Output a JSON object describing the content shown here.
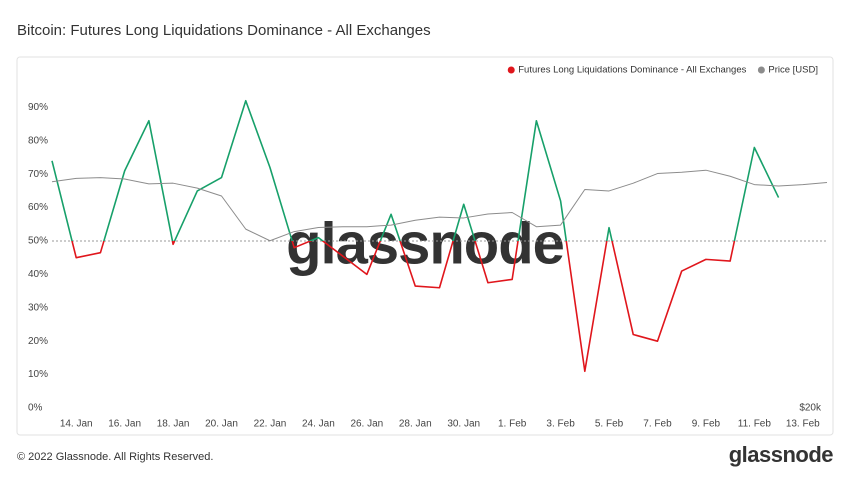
{
  "chart_data": {
    "type": "line",
    "title": "Bitcoin: Futures Long Liquidations Dominance - All Exchanges",
    "categories": [
      null,
      "14. Jan",
      null,
      "16. Jan",
      null,
      "18. Jan",
      null,
      "20. Jan",
      null,
      "22. Jan",
      null,
      "24. Jan",
      null,
      "26. Jan",
      null,
      "28. Jan",
      null,
      "30. Jan",
      null,
      "1. Feb",
      null,
      "3. Feb",
      null,
      "5. Feb",
      null,
      "7. Feb",
      null,
      "9. Feb",
      null,
      "11. Feb",
      null,
      "13. Feb",
      null
    ],
    "series": [
      {
        "name": "Futures Long Liquidations Dominance - All Exchanges",
        "color": "#e0161c",
        "color_above": "#17a06a",
        "threshold": 50,
        "values": [
          74,
          45,
          46.5,
          71,
          86,
          49,
          65,
          69,
          92,
          72,
          48,
          51,
          45.5,
          40,
          58,
          36.5,
          36,
          61,
          37.5,
          38.5,
          86,
          62,
          11,
          54,
          22,
          20,
          41,
          44.5,
          44,
          78,
          63,
          null,
          null
        ]
      },
      {
        "name": "Price [USD]",
        "color": "#8c8c8c",
        "axis": "y2",
        "values": [
          42800,
          43300,
          43400,
          43200,
          42500,
          42600,
          41900,
          40800,
          36500,
          35100,
          36200,
          36700,
          36800,
          36800,
          37000,
          37600,
          38000,
          37900,
          38400,
          38600,
          36800,
          37000,
          41700,
          41500,
          42600,
          44000,
          44200,
          44500,
          43600,
          42400,
          42200,
          42400,
          42700
        ]
      }
    ],
    "ylim": [
      0,
      100
    ],
    "yticks": [
      {
        "value": 0,
        "label": "0%"
      },
      {
        "value": 10,
        "label": "10%"
      },
      {
        "value": 20,
        "label": "20%"
      },
      {
        "value": 30,
        "label": "30%"
      },
      {
        "value": 40,
        "label": "40%"
      },
      {
        "value": 50,
        "label": "50%"
      },
      {
        "value": 60,
        "label": "60%"
      },
      {
        "value": 70,
        "label": "70%"
      },
      {
        "value": 80,
        "label": "80%"
      },
      {
        "value": 90,
        "label": "90%"
      }
    ],
    "y2lim": [
      20000,
      61500
    ],
    "y2log": true,
    "y2ticks": [
      {
        "value": 20000,
        "label": "$20k"
      }
    ],
    "grid": false,
    "legend": "top-right",
    "watermark": "glassnode"
  },
  "footer": {
    "copyright": "© 2022 Glassnode. All Rights Reserved.",
    "logo": "glassnode"
  }
}
